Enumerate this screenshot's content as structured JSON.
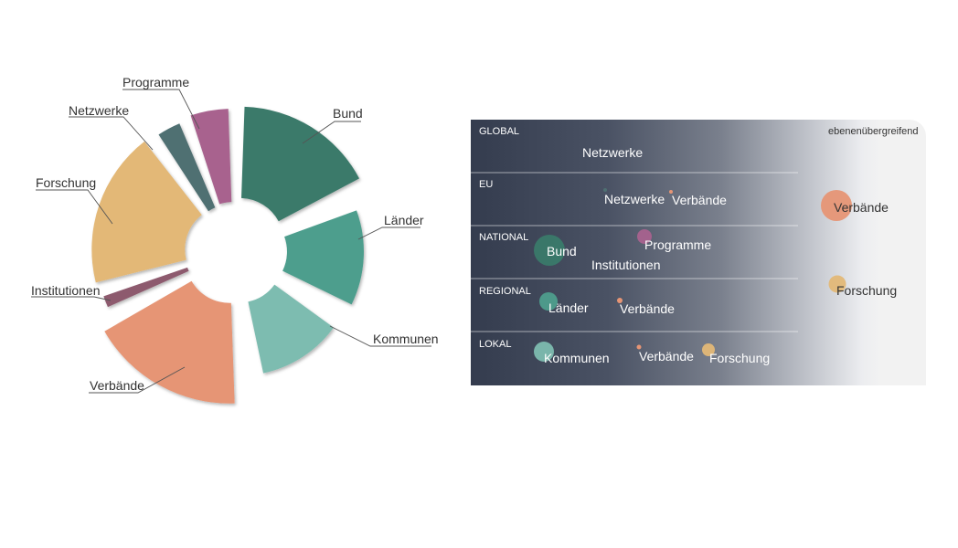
{
  "donut": {
    "segments": [
      {
        "label": "Bund",
        "color": "#3a7a6a"
      },
      {
        "label": "Länder",
        "color": "#4e9e8d"
      },
      {
        "label": "Kommunen",
        "color": "#7dbcb0"
      },
      {
        "label": "Verbände",
        "color": "#e69575"
      },
      {
        "label": "Institutionen",
        "color": "#8d5a6e"
      },
      {
        "label": "Forschung",
        "color": "#e3b877"
      },
      {
        "label": "Netzwerke",
        "color": "#4f6f72"
      },
      {
        "label": "Programme",
        "color": "#a8628e"
      }
    ]
  },
  "matrix": {
    "levels": [
      "GLOBAL",
      "EU",
      "NATIONAL",
      "REGIONAL",
      "LOKAL"
    ],
    "cross_level_header": "ebenenübergreifend",
    "entries": [
      {
        "level": "GLOBAL",
        "label": "Netzwerke"
      },
      {
        "level": "EU",
        "label": "Netzwerke",
        "color": "#4f6f72"
      },
      {
        "level": "EU",
        "label": "Verbände",
        "color": "#e69575"
      },
      {
        "level": "NATIONAL",
        "label": "Bund",
        "color": "#3a7a6a"
      },
      {
        "level": "NATIONAL",
        "label": "Programme",
        "color": "#a8628e"
      },
      {
        "level": "NATIONAL",
        "label": "Institutionen"
      },
      {
        "level": "REGIONAL",
        "label": "Länder",
        "color": "#4e9e8d"
      },
      {
        "level": "REGIONAL",
        "label": "Verbände",
        "color": "#e69575"
      },
      {
        "level": "LOKAL",
        "label": "Kommunen",
        "color": "#7dbcb0"
      },
      {
        "level": "LOKAL",
        "label": "Verbände",
        "color": "#e69575"
      },
      {
        "level": "LOKAL",
        "label": "Forschung",
        "color": "#e3b877"
      },
      {
        "level": "ebenenübergreifend",
        "label": "Verbände",
        "color": "#e69575"
      },
      {
        "level": "ebenenübergreifend",
        "label": "Forschung",
        "color": "#e3b877"
      }
    ]
  }
}
